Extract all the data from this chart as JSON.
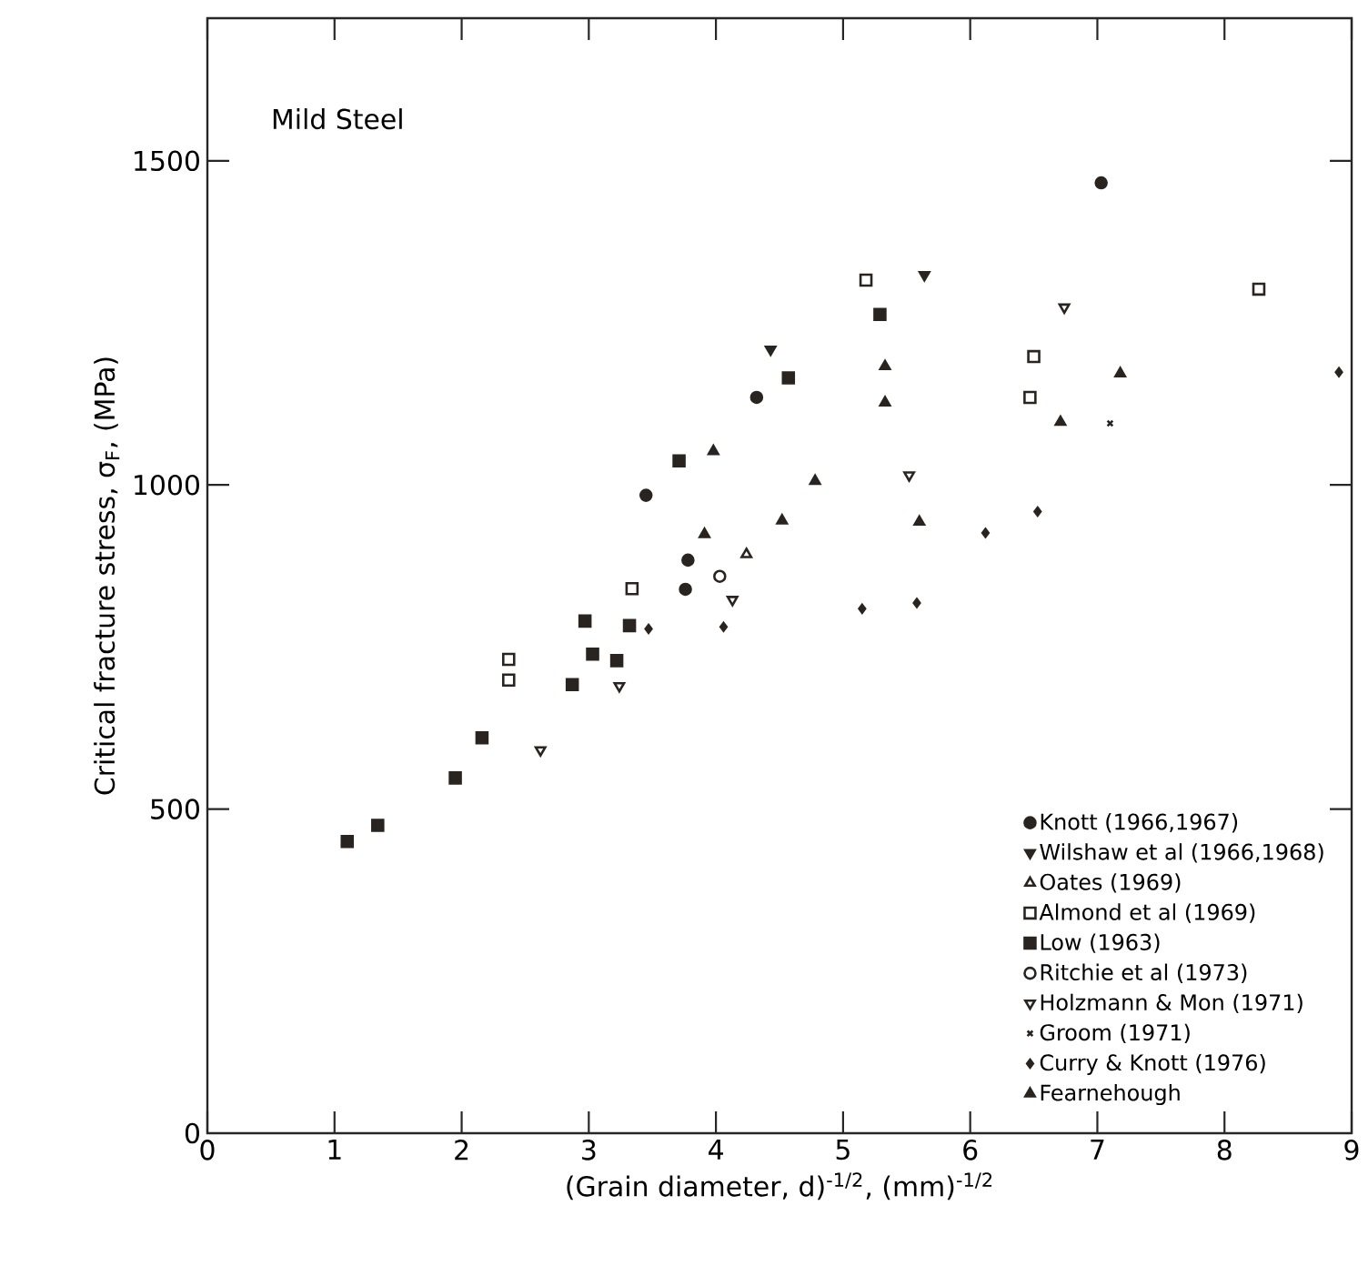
{
  "chart_data": {
    "type": "scatter",
    "title": "Mild Steel",
    "xlabel": "(Grain diameter, d)$^{-1/2}$,  (mm)$^{-1/2}$",
    "ylabel": "Critical fracture stress, σ$_{F}$, (MPa)",
    "xlim": [
      0,
      9
    ],
    "ylim": [
      0,
      1720
    ],
    "xticks": [
      0,
      1,
      2,
      3,
      4,
      5,
      6,
      7,
      8,
      9
    ],
    "yticks": [
      0,
      500,
      1000,
      1500
    ],
    "grid": false,
    "legend": "bottom right",
    "series": [
      {
        "name": "Knott (1966,1967)",
        "color": "#2a2420",
        "marker": "circle",
        "x": [
          3.45,
          3.78,
          3.76,
          4.32,
          7.03
        ],
        "values": [
          984,
          884,
          839,
          1135,
          1466
        ]
      },
      {
        "name": "Wilshaw et al (1966,1968)",
        "color": "#2a2420",
        "marker": "triangle-down",
        "x": [
          4.43,
          5.64
        ],
        "values": [
          1209,
          1324
        ]
      },
      {
        "name": "Oates (1969)",
        "color": "#2a2420",
        "marker": "triangle-open",
        "x": [
          4.24
        ],
        "values": [
          893
        ]
      },
      {
        "name": "Almond et al (1969)",
        "color": "#2a2420",
        "marker": "square-open",
        "x": [
          3.34,
          2.37,
          2.37,
          5.18,
          6.5,
          6.47,
          8.27
        ],
        "values": [
          840,
          731,
          699,
          1316,
          1198,
          1135,
          1302
        ]
      },
      {
        "name": "Low (1963)",
        "color": "#2a2420",
        "marker": "square",
        "x": [
          1.1,
          1.34,
          1.95,
          2.16,
          2.87,
          2.97,
          3.03,
          3.22,
          3.32,
          3.71,
          4.57,
          5.29
        ],
        "values": [
          450,
          475,
          548,
          610,
          692,
          790,
          739,
          729,
          783,
          1037,
          1165,
          1263
        ]
      },
      {
        "name": "Ritchie et al (1973)",
        "color": "#2a2420",
        "marker": "circle-open",
        "x": [
          4.03
        ],
        "values": [
          859
        ]
      },
      {
        "name": "Holzmann & Mon (1971)",
        "color": "#2a2420",
        "marker": "triangle-down-open",
        "x": [
          2.62,
          3.24,
          4.13,
          5.52,
          6.74
        ],
        "values": [
          591,
          690,
          823,
          1015,
          1274
        ]
      },
      {
        "name": "Groom (1971)",
        "color": "#2a2420",
        "marker": "cross",
        "x": [
          7.1
        ],
        "values": [
          1095
        ]
      },
      {
        "name": "Curry & Knott (1976)",
        "color": "#2a2420",
        "marker": "diamond",
        "x": [
          3.47,
          4.06,
          5.15,
          5.58,
          6.12,
          6.53,
          8.9
        ],
        "values": [
          778,
          781,
          809,
          818,
          926,
          959,
          1174
        ]
      },
      {
        "name": "Fearnehough",
        "color": "#2a2420",
        "marker": "triangle",
        "x": [
          3.98,
          3.91,
          4.52,
          4.78,
          5.33,
          5.33,
          5.6,
          6.71,
          7.18
        ],
        "values": [
          1052,
          924,
          945,
          1006,
          1183,
          1127,
          943,
          1097,
          1172
        ]
      }
    ]
  }
}
